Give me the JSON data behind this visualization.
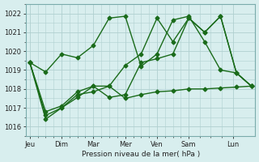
{
  "xlabel": "Pression niveau de la mer( hPa )",
  "bg_color": "#d8eeee",
  "grid_color": "#b0d0d0",
  "line_color": "#1a6b1a",
  "ylim": [
    1015.5,
    1022.5
  ],
  "yticks": [
    1016,
    1017,
    1018,
    1019,
    1020,
    1021,
    1022
  ],
  "xlim": [
    -0.2,
    12.2
  ],
  "day_tick_positions": [
    0.0,
    1.72,
    3.44,
    5.17,
    6.89,
    8.61,
    11.0
  ],
  "day_tick_labels": [
    "Jeu",
    "Dim",
    "Mar",
    "Mer",
    "Ven",
    "Sam",
    "Lun"
  ],
  "series": [
    {
      "x": [
        0.0,
        0.86,
        1.72,
        2.58,
        3.44,
        4.3,
        5.17,
        6.03,
        6.89,
        7.75,
        8.61,
        9.47,
        10.33,
        11.19,
        12.0
      ],
      "y": [
        1019.4,
        1018.9,
        1019.85,
        1019.65,
        1020.3,
        1021.75,
        1021.85,
        1019.2,
        1019.85,
        1021.65,
        1021.85,
        1020.5,
        1019.0,
        1018.85,
        1018.15
      ]
    },
    {
      "x": [
        0.0,
        0.86,
        1.72,
        2.58,
        3.44,
        4.3,
        5.17,
        6.03,
        6.89,
        7.75,
        8.61,
        9.47,
        10.33,
        11.19,
        12.0
      ],
      "y": [
        1019.4,
        1016.4,
        1017.0,
        1017.55,
        1018.15,
        1018.15,
        1019.25,
        1019.85,
        1021.75,
        1020.5,
        1021.75,
        1021.0,
        1021.85,
        1018.85,
        1018.15
      ]
    },
    {
      "x": [
        0.0,
        0.86,
        1.72,
        2.58,
        3.44,
        4.3,
        5.17,
        6.03,
        6.89,
        7.75,
        8.61,
        9.47,
        10.33,
        11.19,
        12.0
      ],
      "y": [
        1019.4,
        1016.6,
        1017.0,
        1017.7,
        1017.85,
        1018.15,
        1017.5,
        1017.7,
        1017.85,
        1017.9,
        1018.0,
        1018.0,
        1018.05,
        1018.1,
        1018.15
      ]
    },
    {
      "x": [
        0.0,
        0.86,
        1.72,
        2.58,
        3.44,
        4.3,
        5.17,
        6.03,
        6.89,
        7.75,
        8.61,
        9.47,
        10.33,
        11.19,
        12.0
      ],
      "y": [
        1019.4,
        1016.8,
        1017.1,
        1017.85,
        1018.15,
        1017.55,
        1017.7,
        1019.4,
        1019.6,
        1019.85,
        1021.75,
        1021.0,
        1021.85,
        1018.85,
        1018.15
      ]
    }
  ],
  "marker": "D",
  "marker_size": 2.5,
  "line_width": 1.0
}
